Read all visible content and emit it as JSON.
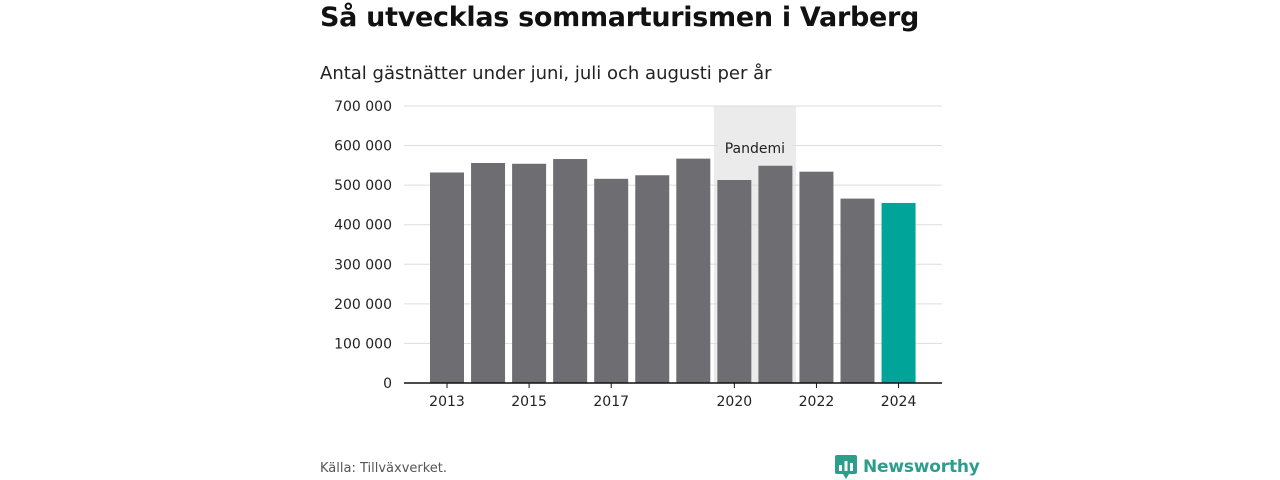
{
  "header": {
    "title": "Så utvecklas sommarturismen i Varberg",
    "subtitle": "Antal gästnätter under juni, juli och augusti per år"
  },
  "footer": {
    "source": "Källa: Tillväxverket.",
    "brand_name": "Newsworthy",
    "brand_icon": "bar-chart-speech-bubble-icon"
  },
  "colors": {
    "bar": "#6e6d72",
    "highlight": "#00a499",
    "pandemic_band": "#ebebeb",
    "grid": "#dddddd",
    "axis": "#111111",
    "brand": "#2d9d8c"
  },
  "chart_data": {
    "type": "bar",
    "title": "Så utvecklas sommarturismen i Varberg",
    "subtitle": "Antal gästnätter under juni, juli och augusti per år",
    "categories": [
      "2013",
      "2014",
      "2015",
      "2016",
      "2017",
      "2018",
      "2019",
      "2020",
      "2021",
      "2022",
      "2023",
      "2024"
    ],
    "values": [
      532000,
      556000,
      554000,
      566000,
      516000,
      525000,
      567000,
      513000,
      549000,
      534000,
      466000,
      455000
    ],
    "x_tick_labels": [
      "2013",
      "2015",
      "2017",
      "2020",
      "2022",
      "2024"
    ],
    "y_tick_labels": [
      "0",
      "100 000",
      "200 000",
      "300 000",
      "400 000",
      "500 000",
      "600 000",
      "700 000"
    ],
    "ylim": [
      0,
      700000
    ],
    "grid": true,
    "highlight_category": "2024",
    "annotation": {
      "label": "Pandemi",
      "from": "2020",
      "to": "2021"
    }
  }
}
